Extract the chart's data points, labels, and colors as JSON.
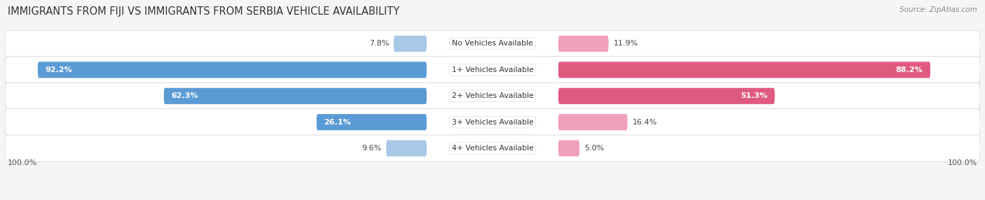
{
  "title": "IMMIGRANTS FROM FIJI VS IMMIGRANTS FROM SERBIA VEHICLE AVAILABILITY",
  "source": "Source: ZipAtlas.com",
  "categories": [
    "No Vehicles Available",
    "1+ Vehicles Available",
    "2+ Vehicles Available",
    "3+ Vehicles Available",
    "4+ Vehicles Available"
  ],
  "fiji_values": [
    7.8,
    92.2,
    62.3,
    26.1,
    9.6
  ],
  "serbia_values": [
    11.9,
    88.2,
    51.3,
    16.4,
    5.0
  ],
  "fiji_color_large": "#5b9bd5",
  "fiji_color_small": "#a8c8e8",
  "serbia_color_large": "#e05a80",
  "serbia_color_small": "#f0a0b8",
  "fiji_label": "Immigrants from Fiji",
  "serbia_label": "Immigrants from Serbia",
  "max_value": 100.0,
  "title_fontsize": 10.5,
  "label_fontsize": 8.0,
  "footer_label": "100.0%",
  "row_colors": [
    "#f0f0f0",
    "#e8e8e8"
  ],
  "fig_bg": "#f5f5f5"
}
